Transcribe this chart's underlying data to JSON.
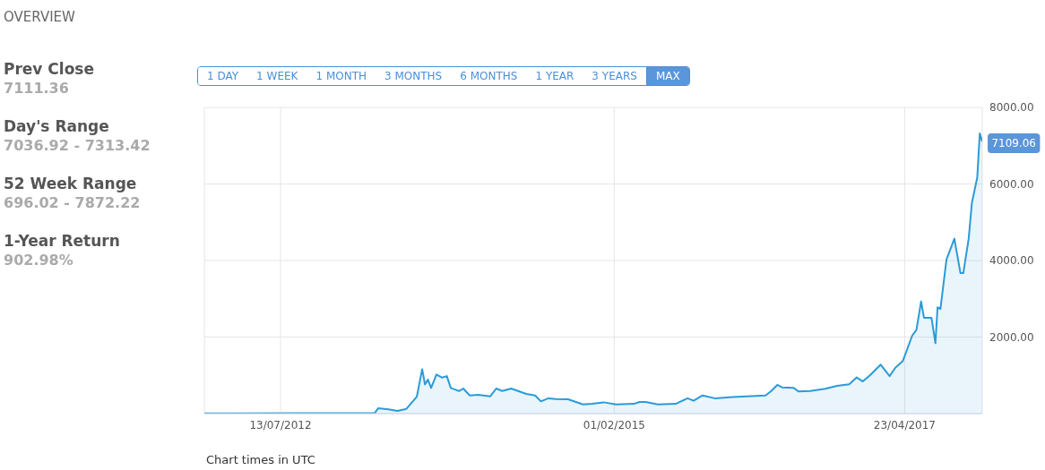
{
  "chart_data": [
    {
      "type": "other",
      "title": "OVERVIEW",
      "annotations": [
        "Prev Close",
        "7111.36",
        "Day's Range",
        "7036.92 - 7313.42",
        "52 Week Range",
        "696.02 - 7872.22",
        "1-Year Return",
        "902.98%"
      ]
    },
    {
      "type": "other",
      "annotations": [
        "1 DAY",
        "1 WEEK",
        "1 MONTH",
        "3 MONTHS",
        "6 MONTHS",
        "1 YEAR",
        "3 YEARS",
        "MAX"
      ]
    },
    {
      "type": "area",
      "annotations": [
        "Chart times in UTC"
      ],
      "grid": true,
      "legend": false,
      "xlim": [
        "2011-12-13",
        "2017-11-26"
      ],
      "xticks": [
        {
          "value": "2012-07-13",
          "label": "13/07/2012"
        },
        {
          "value": "2015-02-01",
          "label": "01/02/2015"
        },
        {
          "value": "2017-04-23",
          "label": "23/04/2017"
        }
      ],
      "ylim": [
        0,
        8000
      ],
      "yticks": [
        {
          "value": 2000,
          "label": "2000.00"
        },
        {
          "value": 4000,
          "label": "4000.00"
        },
        {
          "value": 6000,
          "label": "6000.00"
        },
        {
          "value": 8000,
          "label": "8000.00"
        }
      ],
      "x": [
        "2011-12-13",
        "2013-04-03",
        "2013-04-12",
        "2013-05-11",
        "2013-06-05",
        "2013-06-30",
        "2013-07-29",
        "2013-08-13",
        "2013-08-21",
        "2013-08-29",
        "2013-09-07",
        "2013-09-22",
        "2013-10-08",
        "2013-10-21",
        "2013-11-01",
        "2013-11-24",
        "2013-12-06",
        "2013-12-24",
        "2014-01-17",
        "2014-02-19",
        "2014-03-08",
        "2014-03-25",
        "2014-04-19",
        "2014-05-31",
        "2014-06-25",
        "2014-07-11",
        "2014-08-01",
        "2014-08-22",
        "2014-09-25",
        "2014-11-06",
        "2014-12-01",
        "2015-01-03",
        "2015-02-06",
        "2015-03-28",
        "2015-04-13",
        "2015-04-30",
        "2015-06-03",
        "2015-07-23",
        "2015-08-25",
        "2015-09-11",
        "2015-10-06",
        "2015-11-09",
        "2015-12-29",
        "2016-03-30",
        "2016-04-15",
        "2016-05-02",
        "2016-05-15",
        "2016-06-17",
        "2016-06-30",
        "2016-08-02",
        "2016-09-13",
        "2016-10-16",
        "2016-11-19",
        "2016-12-10",
        "2016-12-27",
        "2017-01-16",
        "2017-02-15",
        "2017-03-12",
        "2017-03-28",
        "2017-04-18",
        "2017-05-14",
        "2017-05-26",
        "2017-06-08",
        "2017-06-16",
        "2017-07-07",
        "2017-07-18",
        "2017-07-24",
        "2017-08-01",
        "2017-08-18",
        "2017-09-09",
        "2017-09-26",
        "2017-10-04",
        "2017-10-19",
        "2017-10-28",
        "2017-11-12",
        "2017-11-19",
        "2017-11-26"
      ],
      "series": [
        {
          "color": "#2b9bd8",
          "values": [
            5,
            20,
            140,
            110,
            70,
            125,
            440,
            1160,
            760,
            890,
            670,
            1020,
            940,
            980,
            670,
            590,
            655,
            475,
            490,
            450,
            655,
            590,
            655,
            515,
            475,
            320,
            400,
            380,
            375,
            240,
            255,
            295,
            240,
            255,
            305,
            305,
            240,
            255,
            400,
            335,
            475,
            400,
            435,
            475,
            590,
            750,
            685,
            670,
            580,
            590,
            650,
            725,
            765,
            945,
            840,
            1000,
            1280,
            980,
            1200,
            1375,
            2035,
            2190,
            2930,
            2505,
            2505,
            1840,
            2775,
            2735,
            4025,
            4570,
            3670,
            3670,
            4570,
            5505,
            6170,
            7320,
            7109.06
          ],
          "value_labels": [
            null,
            null,
            null,
            null,
            null,
            null,
            null,
            null,
            null,
            null,
            null,
            null,
            null,
            null,
            null,
            null,
            null,
            null,
            null,
            null,
            null,
            null,
            null,
            null,
            null,
            null,
            null,
            null,
            null,
            null,
            null,
            null,
            null,
            null,
            null,
            null,
            null,
            null,
            null,
            null,
            null,
            null,
            null,
            null,
            null,
            null,
            null,
            null,
            null,
            null,
            null,
            null,
            null,
            null,
            null,
            null,
            null,
            null,
            null,
            null,
            null,
            null,
            null,
            null,
            null,
            null,
            null,
            null,
            null,
            null,
            null,
            null,
            null,
            null,
            null,
            null,
            "7109.06"
          ]
        }
      ]
    }
  ]
}
